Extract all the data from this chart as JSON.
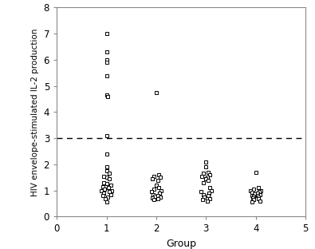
{
  "title": "",
  "xlabel": "Group",
  "ylabel": "HIV envelope-stimulated IL-2 production",
  "xlim": [
    0,
    5
  ],
  "ylim": [
    0,
    8
  ],
  "yticks": [
    0,
    1,
    2,
    3,
    4,
    5,
    6,
    7,
    8
  ],
  "xticks": [
    0,
    1,
    2,
    3,
    4,
    5
  ],
  "dashed_line_y": 3.0,
  "group1": [
    7.0,
    6.3,
    6.0,
    5.9,
    5.4,
    4.65,
    4.6,
    3.1,
    2.4,
    1.9,
    1.75,
    1.65,
    1.55,
    1.5,
    1.45,
    1.3,
    1.25,
    1.2,
    1.15,
    1.1,
    1.05,
    1.0,
    1.0,
    0.95,
    0.9,
    0.85,
    0.8,
    0.75,
    0.7,
    0.55
  ],
  "group1_x_offsets": [
    0,
    0,
    0,
    0,
    0,
    0,
    0.03,
    0,
    0,
    0,
    0,
    0.05,
    -0.05,
    0,
    0.05,
    -0.05,
    0,
    0.08,
    -0.08,
    0.04,
    -0.04,
    0.1,
    -0.1,
    0.05,
    -0.05,
    0.08,
    -0.08,
    0.03,
    -0.03,
    0
  ],
  "group2": [
    4.75,
    1.6,
    1.55,
    1.5,
    1.45,
    1.4,
    1.2,
    1.1,
    1.05,
    1.0,
    0.95,
    0.9,
    0.85,
    0.82,
    0.78,
    0.75,
    0.72,
    0.68,
    0.65
  ],
  "group2_x_offsets": [
    0,
    0.05,
    -0.05,
    0.08,
    -0.08,
    0.03,
    0,
    0.05,
    -0.05,
    0.1,
    -0.1,
    0.07,
    -0.07,
    0.03,
    -0.03,
    0.08,
    -0.08,
    0.04,
    -0.04
  ],
  "group3": [
    2.1,
    1.9,
    1.7,
    1.65,
    1.6,
    1.55,
    1.5,
    1.45,
    1.4,
    1.3,
    1.1,
    1.0,
    0.95,
    0.9,
    0.85,
    0.8,
    0.75,
    0.7,
    0.65,
    0.6
  ],
  "group3_x_offsets": [
    0,
    0,
    0.05,
    -0.05,
    0.08,
    -0.08,
    0.03,
    0,
    0.05,
    -0.05,
    0.08,
    0.1,
    -0.1,
    0.06,
    -0.06,
    0.04,
    -0.04,
    0.07,
    -0.07,
    0.02
  ],
  "group4": [
    1.7,
    1.1,
    1.05,
    1.0,
    0.98,
    0.95,
    0.92,
    0.9,
    0.88,
    0.85,
    0.82,
    0.8,
    0.78,
    0.75,
    0.72,
    0.68,
    0.65,
    0.6,
    0.55
  ],
  "group4_x_offsets": [
    0,
    0.05,
    -0.05,
    0.1,
    -0.1,
    0.07,
    -0.07,
    0.03,
    -0.03,
    0.08,
    -0.08,
    0.04,
    -0.04,
    0.06,
    -0.06,
    0.05,
    -0.05,
    0.08,
    -0.08
  ],
  "marker": "s",
  "marker_size": 3.5,
  "marker_color": "white",
  "marker_edge_color": "black",
  "marker_edge_width": 0.7,
  "background_color": "white",
  "spine_color": "#888888",
  "ylabel_fontsize": 7.5,
  "xlabel_fontsize": 9,
  "tick_labelsize": 8.5
}
